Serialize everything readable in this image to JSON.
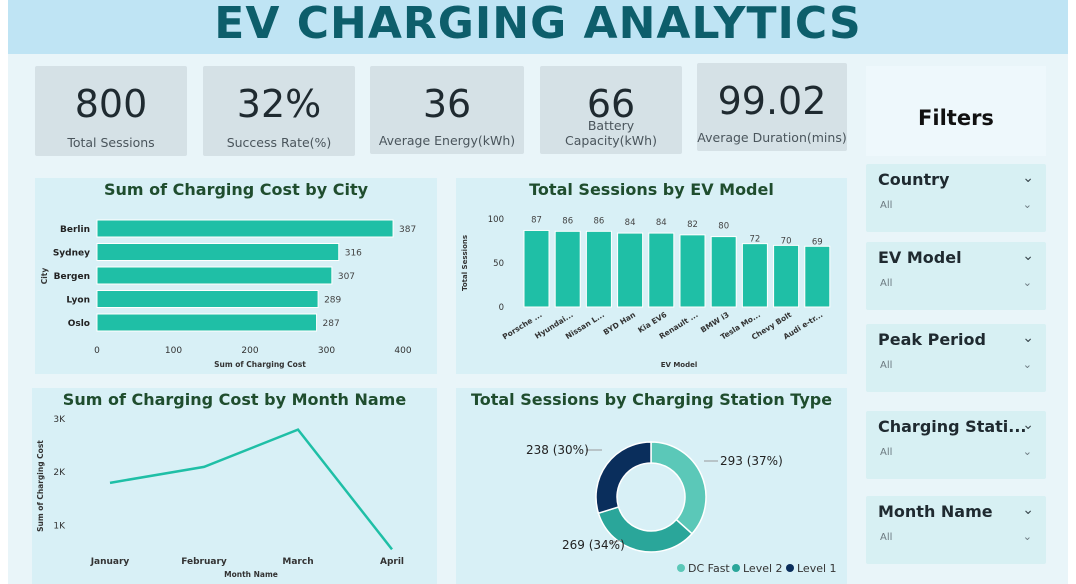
{
  "header": {
    "title": "EV CHARGING ANALYTICS"
  },
  "kpis": [
    {
      "value": "800",
      "label": "Total Sessions"
    },
    {
      "value": "32%",
      "label": "Success Rate(%)"
    },
    {
      "value": "36",
      "label": "Average Energy(kWh)"
    },
    {
      "value": "66",
      "label": "Battery Capacity(kWh)"
    },
    {
      "value": "99.02",
      "label": "Average Duration(mins)"
    }
  ],
  "filters": {
    "title": "Filters",
    "slicers": [
      {
        "title": "Country",
        "value": "All"
      },
      {
        "title": "EV Model",
        "value": "All"
      },
      {
        "title": "Peak Period",
        "value": "All"
      },
      {
        "title": "Charging Stati...",
        "value": "All"
      },
      {
        "title": "Month Name",
        "value": "All"
      }
    ]
  },
  "colors": {
    "teal": "#1fbfa6",
    "teal_mid": "#2aa69a",
    "teal_light": "#5bc8b8",
    "navy": "#0a2e5c"
  },
  "icons": {
    "chevron": "chevron-down-icon"
  },
  "chart_data": [
    {
      "type": "bar",
      "orientation": "horizontal",
      "title": "Sum of Charging Cost by City",
      "xlabel": "Sum of Charging Cost",
      "ylabel": "City",
      "categories": [
        "Berlin",
        "Sydney",
        "Bergen",
        "Lyon",
        "Oslo"
      ],
      "values": [
        387,
        316,
        307,
        289,
        287
      ],
      "xlim": [
        0,
        400
      ],
      "xticks": [
        "0",
        "100",
        "200",
        "300",
        "400"
      ],
      "grid": false
    },
    {
      "type": "bar",
      "title": "Total Sessions by EV Model",
      "xlabel": "EV Model",
      "ylabel": "Total Sessions",
      "categories": [
        "Porsche ...",
        "Hyundai...",
        "Nissan L...",
        "BYD Han",
        "Kia EV6",
        "Renault ...",
        "BMW i3",
        "Tesla Mo...",
        "Chevy Bolt",
        "Audi e-tr..."
      ],
      "values": [
        87,
        86,
        86,
        84,
        84,
        82,
        80,
        72,
        70,
        69
      ],
      "ylim": [
        0,
        100
      ],
      "yticks": [
        "0",
        "50",
        "100"
      ]
    },
    {
      "type": "line",
      "title": "Sum of Charging Cost by Month Name",
      "xlabel": "Month Name",
      "ylabel": "Sum of Charging Cost",
      "categories": [
        "January",
        "February",
        "March",
        "April"
      ],
      "values": [
        1800,
        2100,
        2800,
        550
      ],
      "ylim": [
        500,
        3000
      ],
      "yticks": [
        {
          "value": 1000,
          "label": "1K"
        },
        {
          "value": 2000,
          "label": "2K"
        },
        {
          "value": 3000,
          "label": "3K"
        }
      ]
    },
    {
      "type": "pie",
      "donut": true,
      "title": "Total Sessions by Charging Station Type",
      "slices": [
        {
          "name": "DC Fast",
          "value": 293,
          "label": "293 (37%)"
        },
        {
          "name": "Level 2",
          "value": 269,
          "label": "269 (34%)"
        },
        {
          "name": "Level 1",
          "value": 238,
          "label": "238 (30%)"
        }
      ],
      "legend": "bottom-right"
    }
  ]
}
